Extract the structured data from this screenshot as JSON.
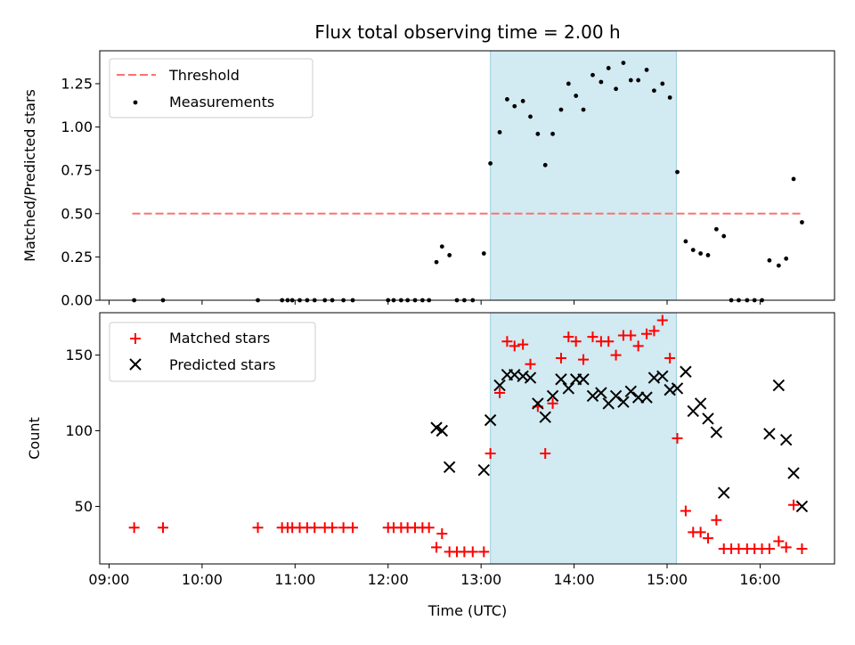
{
  "chart_data": {
    "type": "scatter",
    "title": "Flux total observing time = 2.00 h",
    "xlabel": "Time (UTC)",
    "x_tick_labels": [
      "09:00",
      "10:00",
      "11:00",
      "12:00",
      "13:00",
      "14:00",
      "15:00",
      "16:00"
    ],
    "x_tick_values": [
      9,
      10,
      11,
      12,
      13,
      14,
      15,
      16
    ],
    "xlim": [
      8.9,
      16.8
    ],
    "highlight_span": [
      13.1,
      15.1
    ],
    "colors": {
      "threshold": "#ff7070",
      "matched": "#ff0000",
      "predicted": "#000000",
      "measurement": "#000000",
      "span": "#add8e6"
    },
    "panels": [
      {
        "ylabel": "Matched/Predicted stars",
        "ylim": [
          0,
          1.44
        ],
        "y_ticks": [
          0.0,
          0.25,
          0.5,
          0.75,
          1.0,
          1.25
        ],
        "y_tick_labels": [
          "0.00",
          "0.25",
          "0.50",
          "0.75",
          "1.00",
          "1.25"
        ],
        "legend_position": "upper-left",
        "threshold": {
          "name": "Threshold",
          "x": [
            9.25,
            16.45
          ],
          "y": 0.5
        },
        "series": [
          {
            "name": "Measurements",
            "x": [
              9.27,
              9.58,
              10.6,
              10.86,
              10.92,
              10.97,
              11.05,
              11.13,
              11.21,
              11.32,
              11.4,
              11.52,
              11.62,
              12.0,
              12.06,
              12.14,
              12.21,
              12.29,
              12.37,
              12.44,
              12.52,
              12.58,
              12.66,
              12.74,
              12.82,
              12.91,
              13.03,
              13.1,
              13.2,
              13.28,
              13.36,
              13.45,
              13.53,
              13.61,
              13.69,
              13.77,
              13.86,
              13.94,
              14.02,
              14.1,
              14.2,
              14.29,
              14.37,
              14.45,
              14.53,
              14.61,
              14.69,
              14.78,
              14.86,
              14.95,
              15.03,
              15.11,
              15.2,
              15.28,
              15.36,
              15.44,
              15.53,
              15.61,
              15.69,
              15.77,
              15.86,
              15.94,
              16.02,
              16.1,
              16.2,
              16.28,
              16.36,
              16.45
            ],
            "y": [
              0,
              0,
              0,
              0,
              0,
              0,
              0,
              0,
              0,
              0,
              0,
              0,
              0,
              0,
              0,
              0,
              0,
              0,
              0,
              0,
              0.22,
              0.31,
              0.26,
              0,
              0,
              0,
              0.27,
              0.79,
              0.97,
              1.16,
              1.12,
              1.15,
              1.06,
              0.96,
              0.78,
              0.96,
              1.1,
              1.25,
              1.18,
              1.1,
              1.3,
              1.26,
              1.34,
              1.22,
              1.37,
              1.27,
              1.27,
              1.33,
              1.21,
              1.25,
              1.17,
              0.74,
              0.34,
              0.29,
              0.27,
              0.26,
              0.41,
              0.37,
              0,
              0,
              0,
              0,
              0,
              0.23,
              0.2,
              0.24,
              0.7,
              0.45
            ]
          }
        ]
      },
      {
        "ylabel": "Count",
        "ylim": [
          12,
          178
        ],
        "y_ticks": [
          50,
          100,
          150
        ],
        "y_tick_labels": [
          "50",
          "100",
          "150"
        ],
        "legend_position": "upper-left",
        "series": [
          {
            "name": "Matched stars",
            "marker": "plus",
            "x": [
              9.27,
              9.58,
              10.6,
              10.86,
              10.92,
              10.97,
              11.05,
              11.13,
              11.21,
              11.32,
              11.4,
              11.52,
              11.62,
              12.0,
              12.06,
              12.14,
              12.21,
              12.29,
              12.37,
              12.44,
              12.52,
              12.58,
              12.66,
              12.74,
              12.82,
              12.91,
              13.03,
              13.1,
              13.2,
              13.28,
              13.36,
              13.45,
              13.53,
              13.61,
              13.69,
              13.77,
              13.86,
              13.94,
              14.02,
              14.1,
              14.2,
              14.29,
              14.37,
              14.45,
              14.53,
              14.61,
              14.69,
              14.78,
              14.86,
              14.95,
              15.03,
              15.11,
              15.2,
              15.28,
              15.36,
              15.44,
              15.53,
              15.61,
              15.69,
              15.77,
              15.86,
              15.94,
              16.02,
              16.1,
              16.2,
              16.28,
              16.36,
              16.45
            ],
            "y": [
              36,
              36,
              36,
              36,
              36,
              36,
              36,
              36,
              36,
              36,
              36,
              36,
              36,
              36,
              36,
              36,
              36,
              36,
              36,
              36,
              23,
              32,
              20,
              20,
              20,
              20,
              20,
              85,
              125,
              159,
              156,
              157,
              144,
              116,
              85,
              118,
              148,
              162,
              159,
              147,
              162,
              159,
              159,
              150,
              163,
              163,
              156,
              164,
              166,
              173,
              148,
              95,
              47,
              33,
              33,
              29,
              41,
              22,
              22,
              22,
              22,
              22,
              22,
              22,
              27,
              23,
              51,
              22
            ]
          },
          {
            "name": "Predicted stars",
            "marker": "x",
            "x": [
              12.52,
              12.58,
              12.66,
              13.03,
              13.1,
              13.2,
              13.28,
              13.36,
              13.45,
              13.53,
              13.61,
              13.69,
              13.77,
              13.86,
              13.94,
              14.02,
              14.1,
              14.2,
              14.29,
              14.37,
              14.45,
              14.53,
              14.61,
              14.69,
              14.78,
              14.86,
              14.95,
              15.03,
              15.11,
              15.2,
              15.28,
              15.36,
              15.44,
              15.53,
              15.61,
              16.1,
              16.2,
              16.28,
              16.36,
              16.45
            ],
            "y": [
              102,
              100,
              76,
              74,
              107,
              130,
              137,
              137,
              136,
              135,
              118,
              109,
              123,
              134,
              128,
              134,
              134,
              123,
              125,
              118,
              123,
              119,
              126,
              122,
              122,
              135,
              136,
              127,
              128,
              139,
              113,
              118,
              108,
              99,
              59,
              98,
              130,
              94,
              72,
              50
            ]
          }
        ]
      }
    ]
  }
}
